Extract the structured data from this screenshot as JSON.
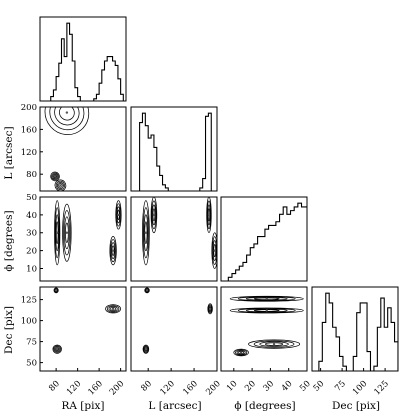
{
  "chart_data": {
    "type": "corner",
    "parameters": [
      {
        "key": "ra",
        "label": "RA [pix]",
        "range": [
          50,
          210
        ],
        "ticks": [
          "80",
          "120",
          "160",
          "200"
        ]
      },
      {
        "key": "l",
        "label": "L [arcsec]",
        "range": [
          50,
          200
        ],
        "ticks": [
          "80",
          "120",
          "160",
          "200"
        ]
      },
      {
        "key": "phi",
        "label": "ϕ [degrees]",
        "range": [
          3,
          50
        ],
        "ticks": [
          "10",
          "20",
          "30",
          "40",
          "50"
        ]
      },
      {
        "key": "dec",
        "label": "Dec [pix]",
        "range": [
          40,
          140
        ],
        "ticks": [
          "50",
          "75",
          "100",
          "125"
        ]
      }
    ],
    "histograms": [
      {
        "param": "ra",
        "edges_from": 50,
        "bin_width": 5,
        "counts": [
          0,
          0,
          0,
          0,
          2,
          5,
          11,
          17,
          28,
          20,
          35,
          30,
          18,
          6,
          2,
          0,
          0,
          0,
          0,
          0,
          1,
          3,
          8,
          14,
          18,
          20,
          20,
          18,
          16,
          10,
          3,
          0
        ]
      },
      {
        "param": "l",
        "edges_from": 50,
        "bin_width": 5,
        "counts": [
          0,
          0,
          0,
          22,
          25,
          21,
          17,
          18,
          14,
          8,
          5,
          2,
          1,
          0,
          0,
          0,
          0,
          0,
          0,
          0,
          0,
          0,
          0,
          0,
          1,
          4,
          24,
          25,
          0,
          0
        ]
      },
      {
        "param": "phi",
        "edges_from": 3,
        "bin_width": 2,
        "counts": [
          0,
          0,
          1,
          2,
          3,
          4,
          5,
          7,
          9,
          10,
          12,
          12,
          14,
          15,
          15,
          16,
          18,
          20,
          18,
          19,
          20,
          21,
          20,
          20
        ]
      },
      {
        "param": "dec",
        "edges_from": 40,
        "bin_width": 4,
        "counts": [
          0,
          0,
          2,
          10,
          16,
          14,
          9,
          7,
          3,
          1,
          0,
          0,
          3,
          12,
          14,
          14,
          4,
          0,
          1,
          9,
          15,
          9,
          13,
          10,
          6
        ]
      }
    ],
    "density_clusters": [
      {
        "x": "ra",
        "y": "l",
        "points": [
          [
            100,
            190,
            40
          ],
          [
            88,
            60,
            10
          ],
          [
            78,
            76,
            8
          ]
        ]
      },
      {
        "x": "ra",
        "y": "phi",
        "points": [
          [
            82,
            30,
            5,
            18
          ],
          [
            100,
            30,
            8,
            16
          ],
          [
            196,
            40,
            5,
            8
          ],
          [
            186,
            20,
            6,
            8
          ]
        ]
      },
      {
        "x": "l",
        "y": "phi",
        "points": [
          [
            76,
            30,
            6,
            18
          ],
          [
            90,
            40,
            5,
            10
          ],
          [
            186,
            40,
            4,
            10
          ],
          [
            196,
            20,
            5,
            10
          ]
        ]
      },
      {
        "x": "ra",
        "y": "dec",
        "points": [
          [
            82,
            66,
            8,
            5
          ],
          [
            80,
            136,
            4,
            3
          ],
          [
            186,
            114,
            14,
            5
          ]
        ]
      },
      {
        "x": "l",
        "y": "dec",
        "points": [
          [
            76,
            66,
            5,
            5
          ],
          [
            78,
            136,
            4,
            3
          ],
          [
            188,
            114,
            4,
            6
          ]
        ]
      },
      {
        "x": "phi",
        "y": "dec",
        "points": [
          [
            28,
            126,
            20,
            3
          ],
          [
            28,
            112,
            20,
            3
          ],
          [
            32,
            72,
            14,
            5
          ],
          [
            14,
            62,
            4,
            4
          ]
        ]
      }
    ]
  }
}
